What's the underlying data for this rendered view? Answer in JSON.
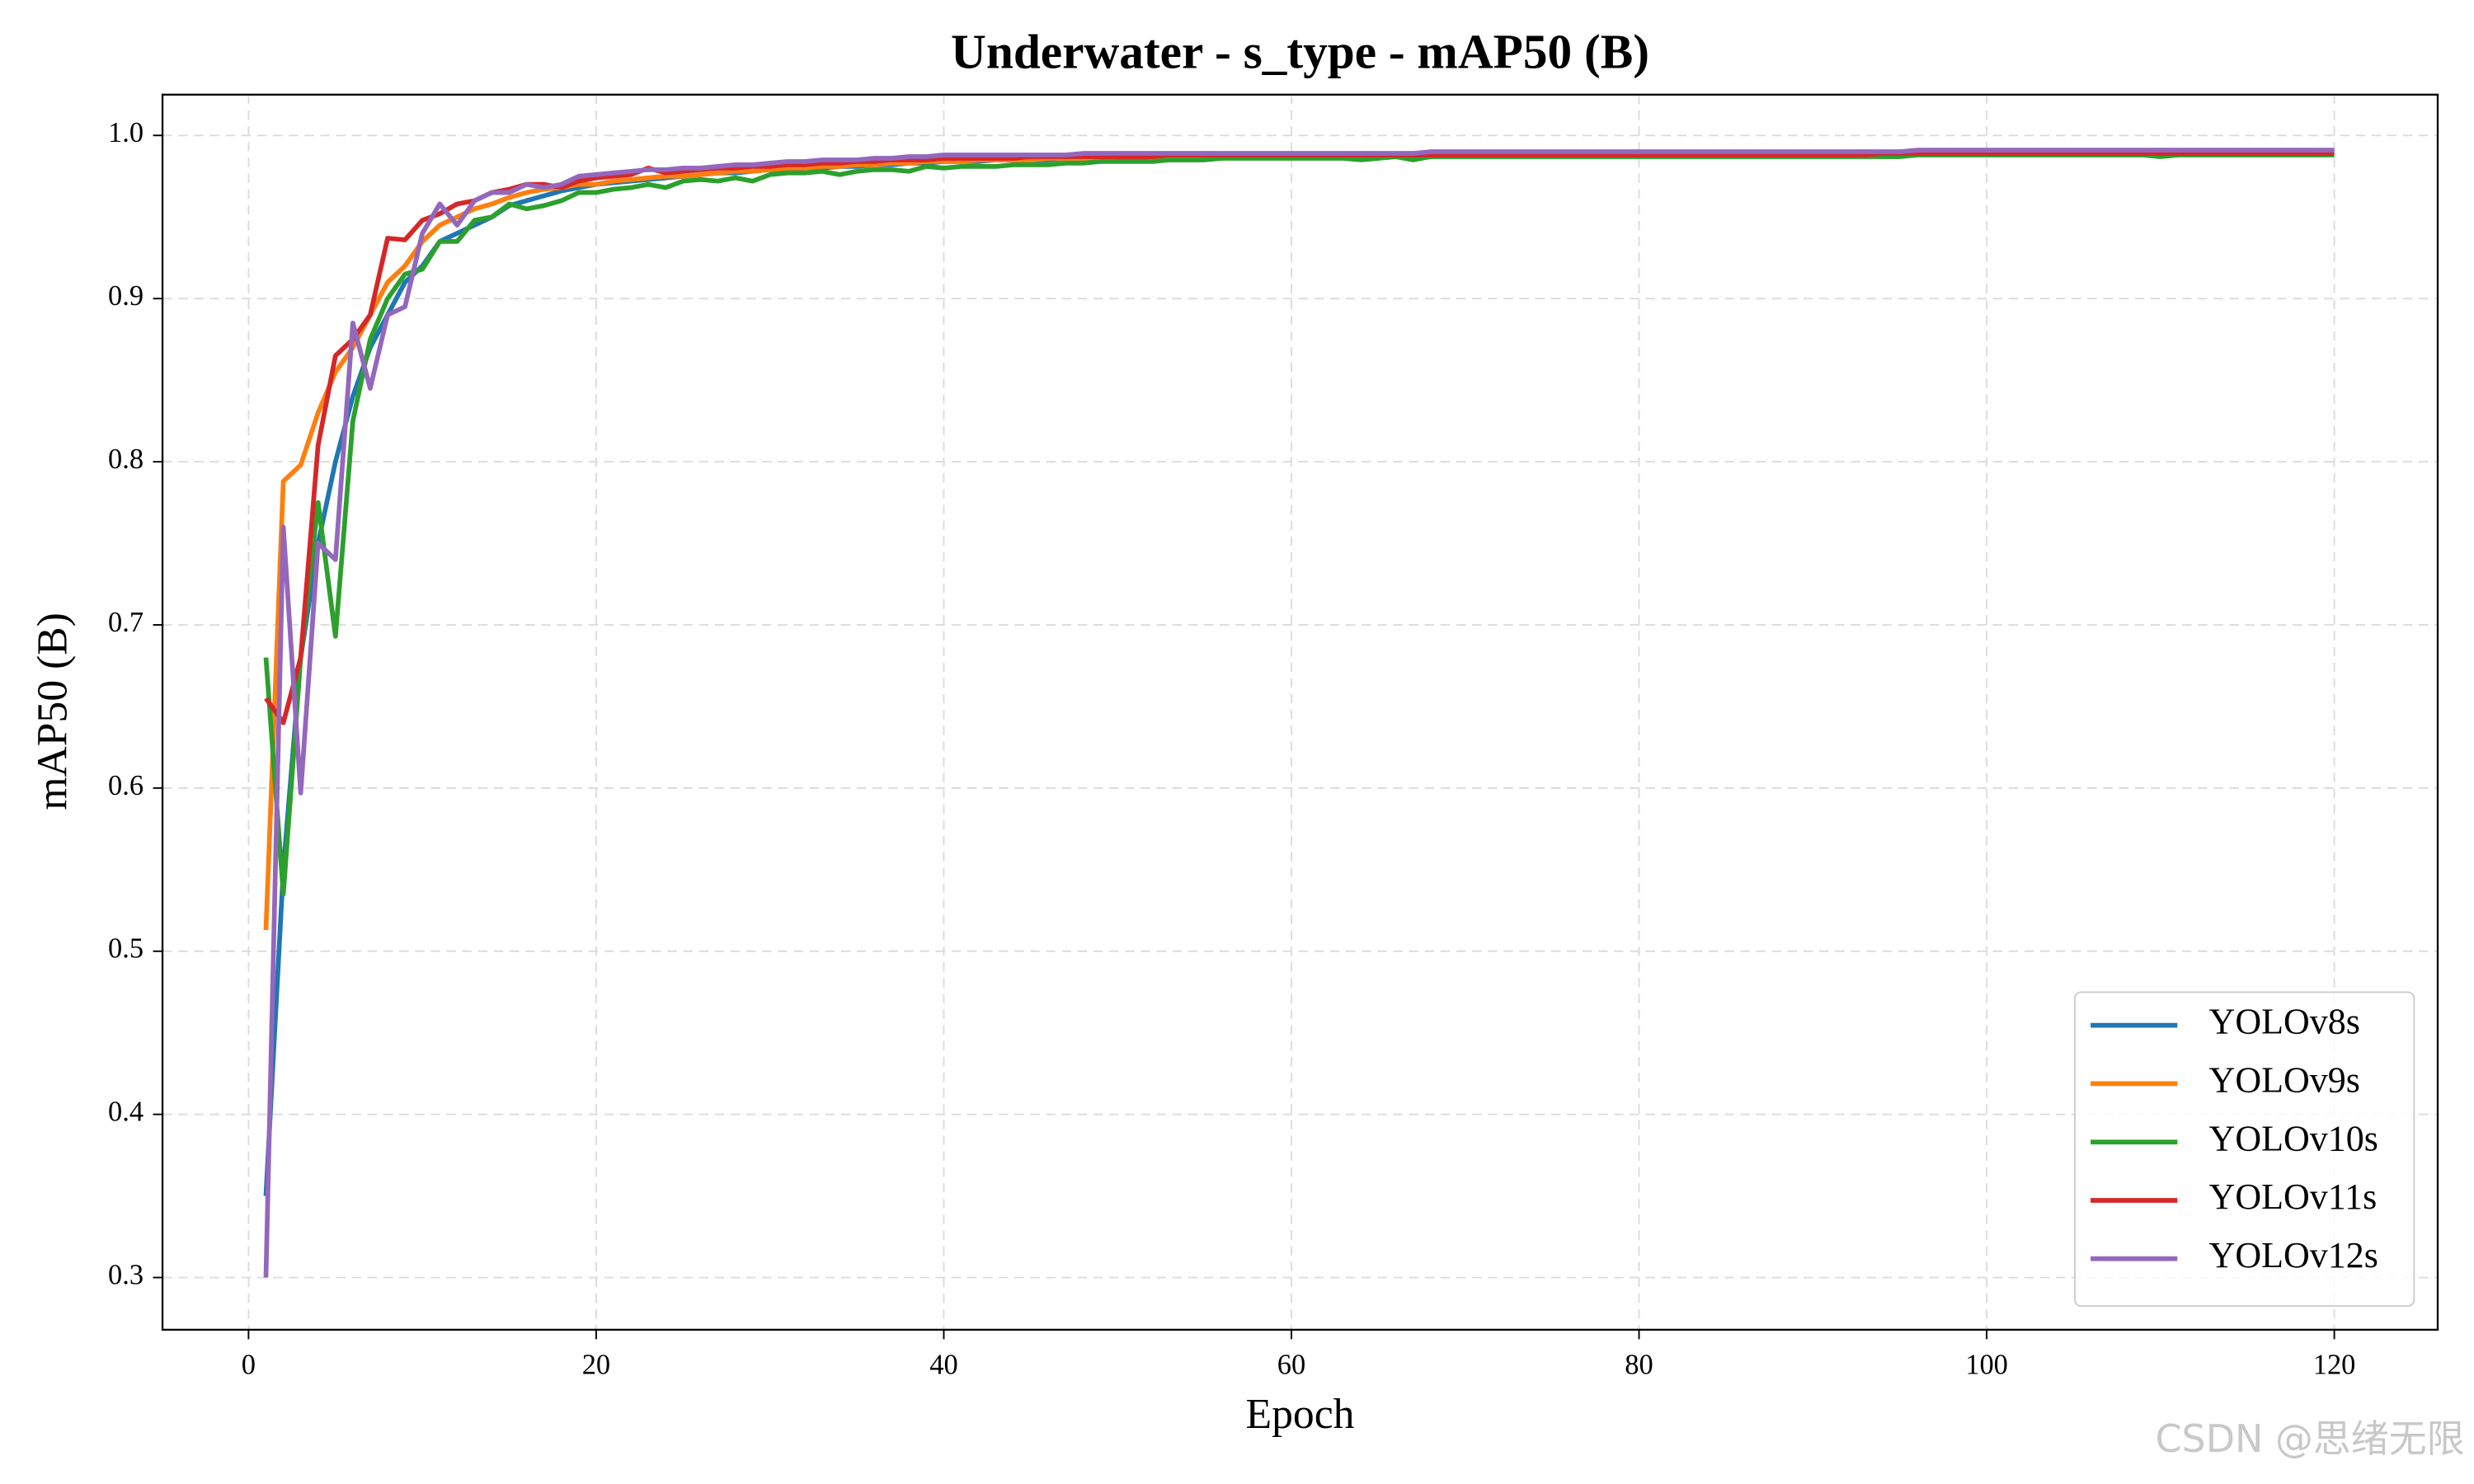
{
  "chart_data": {
    "type": "line",
    "title": "Underwater - s_type - mAP50 (B)",
    "x_label": "Epoch",
    "y_label": "mAP50 (B)",
    "watermark": "CSDN @思绪无限",
    "xlim": [
      -4.95,
      125.95
    ],
    "ylim": [
      0.268,
      1.025
    ],
    "xticks": [
      0,
      20,
      40,
      60,
      80,
      100,
      120
    ],
    "yticks": [
      0.3,
      0.4,
      0.5,
      0.6,
      0.7,
      0.8,
      0.9,
      {
        "value": 1,
        "label": "1.0"
      }
    ],
    "grid": true,
    "legend_position": "lower right",
    "x": [
      1,
      2,
      3,
      4,
      5,
      6,
      7,
      8,
      9,
      10,
      11,
      12,
      13,
      14,
      15,
      16,
      17,
      18,
      19,
      20,
      21,
      22,
      23,
      24,
      25,
      26,
      27,
      28,
      29,
      30,
      31,
      32,
      33,
      34,
      35,
      36,
      37,
      38,
      39,
      40,
      41,
      42,
      43,
      44,
      45,
      46,
      47,
      48,
      49,
      50,
      51,
      52,
      53,
      54,
      55,
      56,
      57,
      58,
      59,
      60,
      61,
      62,
      63,
      64,
      65,
      66,
      67,
      68,
      69,
      70,
      71,
      72,
      73,
      74,
      75,
      76,
      77,
      78,
      79,
      80,
      81,
      82,
      83,
      84,
      85,
      86,
      87,
      88,
      89,
      90,
      91,
      92,
      93,
      94,
      95,
      96,
      97,
      98,
      99,
      100,
      101,
      102,
      103,
      104,
      105,
      106,
      107,
      108,
      109,
      110,
      111,
      112,
      113,
      114,
      115,
      116,
      117,
      118,
      119,
      120
    ],
    "series": [
      {
        "name": "YOLOv8s",
        "color": "#1f77b4",
        "values": [
          0.35,
          0.55,
          0.68,
          0.75,
          0.8,
          0.84,
          0.87,
          0.89,
          0.91,
          0.92,
          0.935,
          0.94,
          0.945,
          0.95,
          0.957,
          0.96,
          0.963,
          0.966,
          0.968,
          0.97,
          0.971,
          0.972,
          0.973,
          0.974,
          0.975,
          0.976,
          0.977,
          0.977,
          0.978,
          0.979,
          0.979,
          0.98,
          0.98,
          0.981,
          0.981,
          0.982,
          0.982,
          0.983,
          0.983,
          0.984,
          0.984,
          0.984,
          0.985,
          0.985,
          0.985,
          0.985,
          0.986,
          0.986,
          0.986,
          0.986,
          0.986,
          0.987,
          0.987,
          0.987,
          0.987,
          0.987,
          0.987,
          0.988,
          0.988,
          0.988,
          0.988,
          0.988,
          0.988,
          0.988,
          0.988,
          0.988,
          0.988,
          0.988,
          0.988,
          0.988,
          0.988,
          0.989,
          0.989,
          0.989,
          0.989,
          0.989,
          0.989,
          0.989,
          0.989,
          0.989,
          0.989,
          0.989,
          0.989,
          0.989,
          0.989,
          0.989,
          0.989,
          0.989,
          0.989,
          0.989,
          0.989,
          0.989,
          0.989,
          0.989,
          0.989,
          0.99,
          0.99,
          0.99,
          0.99,
          0.99,
          0.99,
          0.99,
          0.99,
          0.99,
          0.99,
          0.99,
          0.99,
          0.99,
          0.99,
          0.99,
          0.99,
          0.99,
          0.99,
          0.99,
          0.99,
          0.99,
          0.99,
          0.99,
          0.99,
          0.99
        ]
      },
      {
        "name": "YOLOv9s",
        "color": "#ff7f0e",
        "values": [
          0.513,
          0.788,
          0.798,
          0.83,
          0.855,
          0.87,
          0.89,
          0.91,
          0.92,
          0.935,
          0.945,
          0.95,
          0.955,
          0.958,
          0.962,
          0.965,
          0.967,
          0.968,
          0.97,
          0.97,
          0.972,
          0.973,
          0.974,
          0.975,
          0.975,
          0.976,
          0.977,
          0.978,
          0.978,
          0.979,
          0.98,
          0.98,
          0.981,
          0.981,
          0.982,
          0.982,
          0.983,
          0.983,
          0.984,
          0.984,
          0.984,
          0.985,
          0.985,
          0.985,
          0.985,
          0.986,
          0.986,
          0.986,
          0.986,
          0.987,
          0.987,
          0.987,
          0.987,
          0.987,
          0.987,
          0.988,
          0.988,
          0.988,
          0.988,
          0.988,
          0.988,
          0.988,
          0.988,
          0.988,
          0.988,
          0.988,
          0.988,
          0.988,
          0.989,
          0.989,
          0.989,
          0.989,
          0.989,
          0.989,
          0.989,
          0.989,
          0.989,
          0.989,
          0.989,
          0.989,
          0.989,
          0.989,
          0.989,
          0.989,
          0.989,
          0.989,
          0.989,
          0.989,
          0.989,
          0.989,
          0.989,
          0.989,
          0.989,
          0.989,
          0.99,
          0.99,
          0.99,
          0.99,
          0.99,
          0.99,
          0.99,
          0.99,
          0.99,
          0.99,
          0.99,
          0.99,
          0.99,
          0.99,
          0.99,
          0.99,
          0.99,
          0.99,
          0.99,
          0.99,
          0.99,
          0.99,
          0.99,
          0.99,
          0.99,
          0.99
        ]
      },
      {
        "name": "YOLOv10s",
        "color": "#2ca02c",
        "values": [
          0.68,
          0.535,
          0.68,
          0.775,
          0.693,
          0.825,
          0.875,
          0.9,
          0.915,
          0.918,
          0.935,
          0.935,
          0.948,
          0.95,
          0.958,
          0.955,
          0.957,
          0.96,
          0.965,
          0.965,
          0.967,
          0.968,
          0.97,
          0.968,
          0.972,
          0.973,
          0.972,
          0.974,
          0.972,
          0.976,
          0.977,
          0.977,
          0.978,
          0.976,
          0.978,
          0.979,
          0.979,
          0.978,
          0.981,
          0.98,
          0.981,
          0.981,
          0.981,
          0.982,
          0.982,
          0.982,
          0.983,
          0.983,
          0.984,
          0.984,
          0.984,
          0.984,
          0.985,
          0.985,
          0.985,
          0.986,
          0.986,
          0.986,
          0.986,
          0.986,
          0.986,
          0.986,
          0.986,
          0.985,
          0.986,
          0.987,
          0.985,
          0.987,
          0.987,
          0.987,
          0.987,
          0.987,
          0.987,
          0.987,
          0.987,
          0.987,
          0.987,
          0.987,
          0.987,
          0.987,
          0.987,
          0.987,
          0.987,
          0.987,
          0.987,
          0.987,
          0.987,
          0.987,
          0.987,
          0.987,
          0.987,
          0.987,
          0.987,
          0.987,
          0.987,
          0.988,
          0.988,
          0.988,
          0.988,
          0.988,
          0.988,
          0.988,
          0.988,
          0.988,
          0.988,
          0.988,
          0.988,
          0.988,
          0.988,
          0.987,
          0.988,
          0.988,
          0.988,
          0.988,
          0.988,
          0.988,
          0.988,
          0.988,
          0.988,
          0.988
        ]
      },
      {
        "name": "YOLOv11s",
        "color": "#d62728",
        "values": [
          0.655,
          0.64,
          0.68,
          0.81,
          0.865,
          0.875,
          0.89,
          0.937,
          0.936,
          0.948,
          0.952,
          0.958,
          0.96,
          0.965,
          0.967,
          0.97,
          0.97,
          0.968,
          0.972,
          0.974,
          0.975,
          0.976,
          0.98,
          0.977,
          0.978,
          0.979,
          0.98,
          0.98,
          0.981,
          0.981,
          0.982,
          0.982,
          0.983,
          0.983,
          0.984,
          0.984,
          0.985,
          0.985,
          0.985,
          0.986,
          0.986,
          0.986,
          0.986,
          0.986,
          0.987,
          0.987,
          0.987,
          0.987,
          0.987,
          0.987,
          0.987,
          0.987,
          0.988,
          0.988,
          0.988,
          0.988,
          0.988,
          0.988,
          0.988,
          0.988,
          0.988,
          0.988,
          0.988,
          0.988,
          0.988,
          0.988,
          0.988,
          0.988,
          0.988,
          0.988,
          0.988,
          0.988,
          0.988,
          0.988,
          0.988,
          0.988,
          0.988,
          0.988,
          0.988,
          0.988,
          0.988,
          0.988,
          0.988,
          0.988,
          0.988,
          0.988,
          0.988,
          0.988,
          0.988,
          0.988,
          0.988,
          0.988,
          0.988,
          0.989,
          0.989,
          0.989,
          0.989,
          0.989,
          0.989,
          0.989,
          0.989,
          0.989,
          0.989,
          0.989,
          0.989,
          0.989,
          0.989,
          0.989,
          0.989,
          0.989,
          0.989,
          0.989,
          0.989,
          0.989,
          0.989,
          0.989,
          0.989,
          0.989,
          0.989,
          0.989
        ]
      },
      {
        "name": "YOLOv12s",
        "color": "#9467bd",
        "values": [
          0.3,
          0.76,
          0.597,
          0.75,
          0.74,
          0.885,
          0.845,
          0.89,
          0.895,
          0.94,
          0.958,
          0.945,
          0.96,
          0.965,
          0.965,
          0.97,
          0.968,
          0.97,
          0.975,
          0.976,
          0.977,
          0.978,
          0.979,
          0.979,
          0.98,
          0.98,
          0.981,
          0.982,
          0.982,
          0.983,
          0.984,
          0.984,
          0.985,
          0.985,
          0.985,
          0.986,
          0.986,
          0.987,
          0.987,
          0.988,
          0.988,
          0.988,
          0.988,
          0.988,
          0.988,
          0.988,
          0.988,
          0.989,
          0.989,
          0.989,
          0.989,
          0.989,
          0.989,
          0.989,
          0.989,
          0.989,
          0.989,
          0.989,
          0.989,
          0.989,
          0.989,
          0.989,
          0.989,
          0.989,
          0.989,
          0.989,
          0.989,
          0.99,
          0.99,
          0.99,
          0.99,
          0.99,
          0.99,
          0.99,
          0.99,
          0.99,
          0.99,
          0.99,
          0.99,
          0.99,
          0.99,
          0.99,
          0.99,
          0.99,
          0.99,
          0.99,
          0.99,
          0.99,
          0.99,
          0.99,
          0.99,
          0.99,
          0.99,
          0.99,
          0.99,
          0.991,
          0.991,
          0.991,
          0.991,
          0.991,
          0.991,
          0.991,
          0.991,
          0.991,
          0.991,
          0.991,
          0.991,
          0.991,
          0.991,
          0.991,
          0.991,
          0.991,
          0.991,
          0.991,
          0.991,
          0.991,
          0.991,
          0.991,
          0.991,
          0.991
        ]
      }
    ]
  }
}
